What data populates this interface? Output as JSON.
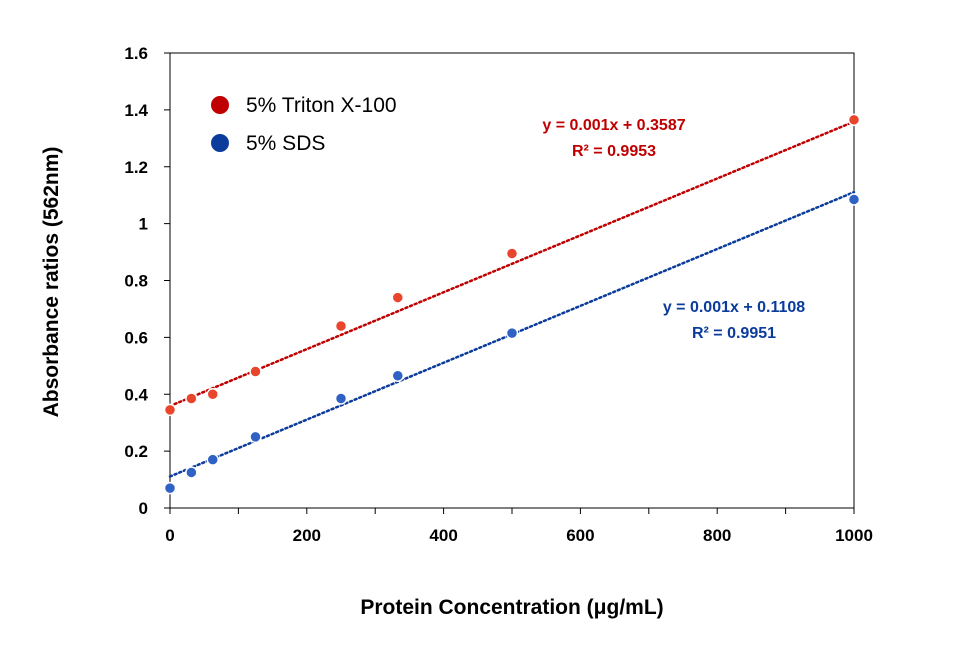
{
  "chart_data": {
    "type": "scatter",
    "xlabel": "Protein Concentration (μg/mL)",
    "ylabel": "Absorbance ratios (562nm)",
    "xlim": [
      0,
      1000
    ],
    "ylim": [
      0,
      1.6
    ],
    "x_ticks": [
      0,
      200,
      400,
      600,
      800,
      1000
    ],
    "x_tick_labels": [
      "0",
      "200",
      "400",
      "600",
      "800",
      "1000"
    ],
    "y_ticks": [
      0,
      0.2,
      0.4,
      0.6,
      0.8,
      1.0,
      1.2,
      1.4,
      1.6
    ],
    "y_tick_labels": [
      "0",
      "0.2",
      "0.4",
      "0.6",
      "0.8",
      "1",
      "1.2",
      "1.4",
      "1.6"
    ],
    "grid": false,
    "legend_position": "top-left",
    "series": [
      {
        "name": "5% Triton X-100",
        "color": "#c00000",
        "marker_color": "#e8452c",
        "x": [
          0,
          31.25,
          62.5,
          125,
          250,
          333,
          500,
          1000
        ],
        "y": [
          0.345,
          0.385,
          0.4,
          0.48,
          0.64,
          0.74,
          0.895,
          1.365
        ],
        "trendline": {
          "slope": 0.001,
          "intercept": 0.3587,
          "equation": "y = 0.001x + 0.3587",
          "r2": "R² = 0.9953"
        }
      },
      {
        "name": "5% SDS",
        "color": "#0b3c9c",
        "marker_color": "#2f62c4",
        "x": [
          0,
          31.25,
          62.5,
          125,
          250,
          333,
          500,
          1000
        ],
        "y": [
          0.07,
          0.125,
          0.17,
          0.25,
          0.385,
          0.465,
          0.615,
          1.085
        ],
        "trendline": {
          "slope": 0.001,
          "intercept": 0.1108,
          "equation": "y = 0.001x + 0.1108",
          "r2": "R² = 0.9951"
        }
      }
    ]
  }
}
